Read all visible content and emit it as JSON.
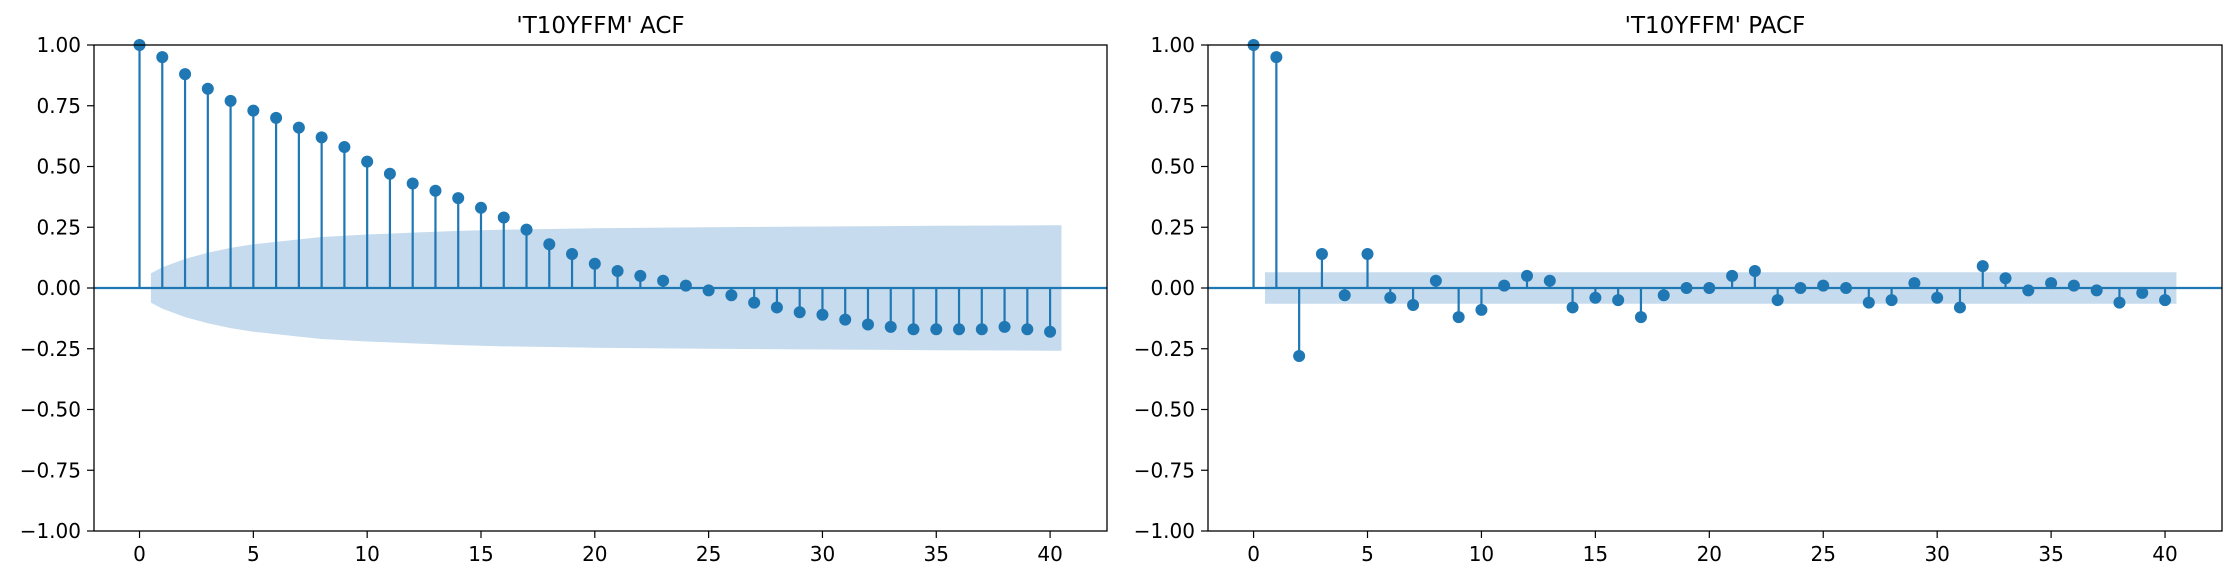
{
  "chart_data": [
    {
      "type": "stem",
      "title": "'T10YFFM' ACF",
      "xlabel": "",
      "ylabel": "",
      "xlim": [
        -2,
        42.5
      ],
      "ylim": [
        -1.0,
        1.0
      ],
      "xticks": [
        "0",
        "5",
        "10",
        "15",
        "20",
        "25",
        "30",
        "35",
        "40"
      ],
      "yticks": [
        "1.00",
        "0.75",
        "0.50",
        "0.25",
        "0.00",
        "−0.25",
        "−0.50",
        "−0.75",
        "−1.00"
      ],
      "grid": false,
      "lags": [
        0,
        1,
        2,
        3,
        4,
        5,
        6,
        7,
        8,
        9,
        10,
        11,
        12,
        13,
        14,
        15,
        16,
        17,
        18,
        19,
        20,
        21,
        22,
        23,
        24,
        25,
        26,
        27,
        28,
        29,
        30,
        31,
        32,
        33,
        34,
        35,
        36,
        37,
        38,
        39,
        40
      ],
      "values": [
        1.0,
        0.95,
        0.88,
        0.82,
        0.77,
        0.73,
        0.7,
        0.66,
        0.62,
        0.58,
        0.52,
        0.47,
        0.43,
        0.4,
        0.37,
        0.33,
        0.29,
        0.24,
        0.18,
        0.14,
        0.1,
        0.07,
        0.05,
        0.03,
        0.01,
        -0.01,
        -0.03,
        -0.06,
        -0.08,
        -0.1,
        -0.11,
        -0.13,
        -0.15,
        -0.16,
        -0.17,
        -0.17,
        -0.17,
        -0.17,
        -0.16,
        -0.17,
        -0.18
      ],
      "confidence_band": {
        "lags": [
          0.5,
          1,
          2,
          3,
          4,
          5,
          6,
          7,
          8,
          9,
          10,
          12,
          14,
          16,
          18,
          20,
          25,
          30,
          35,
          40,
          40.5
        ],
        "upper": [
          0.06,
          0.085,
          0.12,
          0.145,
          0.165,
          0.18,
          0.19,
          0.2,
          0.21,
          0.215,
          0.22,
          0.228,
          0.235,
          0.24,
          0.243,
          0.246,
          0.25,
          0.253,
          0.256,
          0.258,
          0.258
        ]
      },
      "colors": {
        "stem": "#1f77b4",
        "band": "#c6dbed",
        "zero_line": "#1f77b4"
      }
    },
    {
      "type": "stem",
      "title": "'T10YFFM' PACF",
      "xlabel": "",
      "ylabel": "",
      "xlim": [
        -2,
        42.5
      ],
      "ylim": [
        -1.0,
        1.0
      ],
      "xticks": [
        "0",
        "5",
        "10",
        "15",
        "20",
        "25",
        "30",
        "35",
        "40"
      ],
      "yticks": [
        "1.00",
        "0.75",
        "0.50",
        "0.25",
        "0.00",
        "−0.25",
        "−0.50",
        "−0.75",
        "−1.00"
      ],
      "grid": false,
      "lags": [
        0,
        1,
        2,
        3,
        4,
        5,
        6,
        7,
        8,
        9,
        10,
        11,
        12,
        13,
        14,
        15,
        16,
        17,
        18,
        19,
        20,
        21,
        22,
        23,
        24,
        25,
        26,
        27,
        28,
        29,
        30,
        31,
        32,
        33,
        34,
        35,
        36,
        37,
        38,
        39,
        40
      ],
      "values": [
        1.0,
        0.95,
        -0.28,
        0.14,
        -0.03,
        0.14,
        -0.04,
        -0.07,
        0.03,
        -0.12,
        -0.09,
        0.01,
        0.05,
        0.03,
        -0.08,
        -0.04,
        -0.05,
        -0.12,
        -0.03,
        0.0,
        0.0,
        0.05,
        0.07,
        -0.05,
        0.0,
        0.01,
        0.0,
        -0.06,
        -0.05,
        0.02,
        -0.04,
        -0.08,
        0.09,
        0.04,
        -0.01,
        0.02,
        0.01,
        -0.01,
        -0.06,
        -0.02,
        -0.05
      ],
      "confidence_band": {
        "lags": [
          0.5,
          40.5
        ],
        "upper": [
          0.065,
          0.065
        ]
      },
      "colors": {
        "stem": "#1f77b4",
        "band": "#c6dbed",
        "zero_line": "#1f77b4"
      }
    }
  ]
}
